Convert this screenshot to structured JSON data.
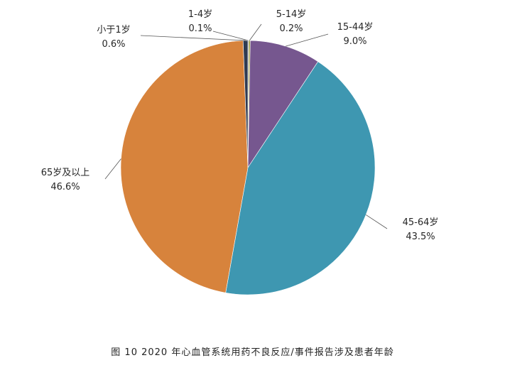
{
  "chart_data": {
    "type": "pie",
    "slices": [
      {
        "label": "1-4岁",
        "value": 0.1,
        "display": "0.1%",
        "color": "#4f4f4f"
      },
      {
        "label": "5-14岁",
        "value": 0.2,
        "display": "0.2%",
        "color": "#9a9a3a"
      },
      {
        "label": "15-44岁",
        "value": 9.0,
        "display": "9.0%",
        "color": "#76578f"
      },
      {
        "label": "45-64岁",
        "value": 43.5,
        "display": "43.5%",
        "color": "#3e97b1"
      },
      {
        "label": "65岁及以上",
        "value": 46.6,
        "display": "46.6%",
        "color": "#d7833c"
      },
      {
        "label": "小于1岁",
        "value": 0.6,
        "display": "0.6%",
        "color": "#2f3b52"
      }
    ],
    "legend": "none",
    "data_labels": "outside-with-leader-lines"
  },
  "caption": "图 10 2020 年心血管系统用药不良反应/事件报告涉及患者年龄"
}
